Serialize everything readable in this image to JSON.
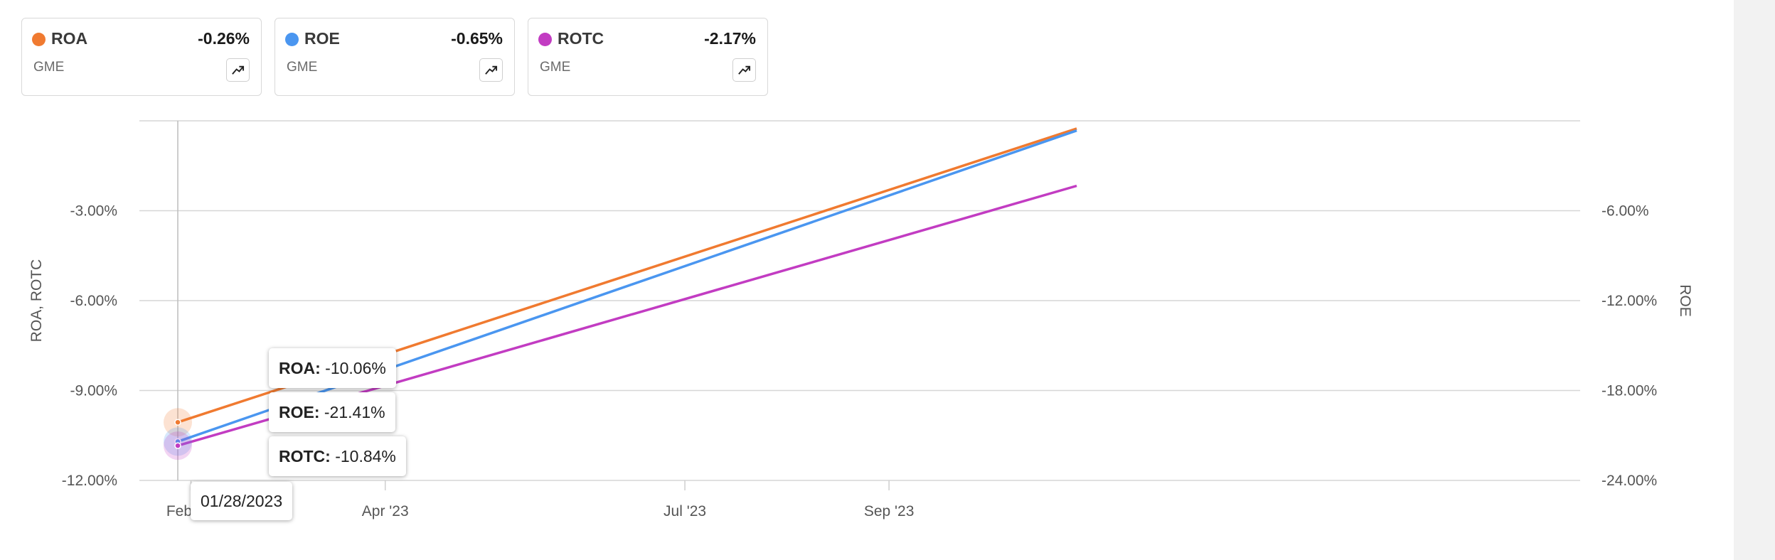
{
  "cards": [
    {
      "name": "ROA",
      "value": "-0.26%",
      "symbol": "GME",
      "color": "#f07a30"
    },
    {
      "name": "ROE",
      "value": "-0.65%",
      "symbol": "GME",
      "color": "#4a96f0"
    },
    {
      "name": "ROTC",
      "value": "-2.17%",
      "symbol": "GME",
      "color": "#c23cc2"
    }
  ],
  "icons": {
    "card_button": "trend-up-icon"
  },
  "tooltip": {
    "date": "01/28/2023",
    "items": [
      {
        "label": "ROA:",
        "value": "-10.06%"
      },
      {
        "label": "ROE:",
        "value": "-21.41%"
      },
      {
        "label": "ROTC:",
        "value": "-10.84%"
      }
    ]
  },
  "chart_data": {
    "type": "line",
    "x_ticks": [
      "Feb '23",
      "Apr '23",
      "Jul '23",
      "Sep '23"
    ],
    "left_axis": {
      "label": "ROA, ROTC",
      "ticks": [
        "-3.00%",
        "-6.00%",
        "-9.00%",
        "-12.00%"
      ],
      "range": [
        -12,
        0
      ]
    },
    "right_axis": {
      "label": "ROE",
      "ticks": [
        "-6.00%",
        "-12.00%",
        "-18.00%",
        "-24.00%"
      ],
      "range": [
        -24,
        0
      ]
    },
    "grid": true,
    "series": [
      {
        "name": "ROA",
        "axis": "left",
        "color": "#f07a30",
        "points": [
          [
            "2023-01-28",
            -10.06
          ],
          [
            "2023-10-28",
            -0.26
          ]
        ]
      },
      {
        "name": "ROE",
        "axis": "right",
        "color": "#4a96f0",
        "points": [
          [
            "2023-01-28",
            -21.41
          ],
          [
            "2023-10-28",
            -0.65
          ]
        ]
      },
      {
        "name": "ROTC",
        "axis": "left",
        "color": "#c23cc2",
        "points": [
          [
            "2023-01-28",
            -10.84
          ],
          [
            "2023-10-28",
            -2.17
          ]
        ]
      }
    ]
  }
}
